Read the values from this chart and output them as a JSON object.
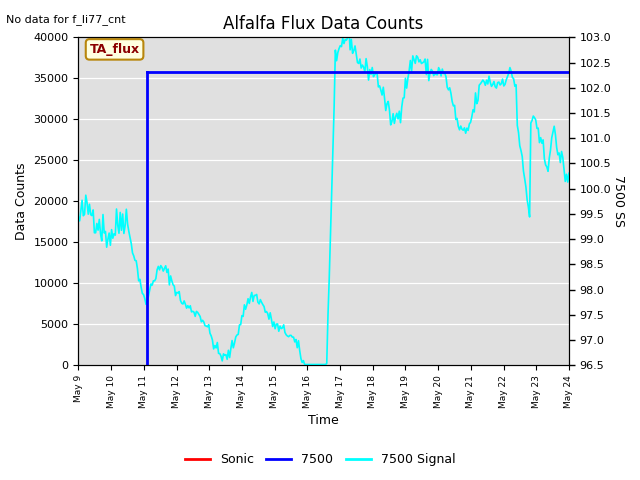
{
  "title": "Alfalfa Flux Data Counts",
  "top_left_text": "No data for f_li77_cnt",
  "xlabel": "Time",
  "ylabel_left": "Data Counts",
  "ylabel_right": "7500 SS",
  "annotation_box": "TA_flux",
  "ylim_left": [
    0,
    40000
  ],
  "ylim_right": [
    96.5,
    103.0
  ],
  "yticks_left": [
    0,
    5000,
    10000,
    15000,
    20000,
    25000,
    30000,
    35000,
    40000
  ],
  "yticks_right": [
    96.5,
    97.0,
    97.5,
    98.0,
    98.5,
    99.0,
    99.5,
    100.0,
    100.5,
    101.0,
    101.5,
    102.0,
    102.5,
    103.0
  ],
  "xtick_labels": [
    "May 9",
    "May 10",
    "May 11",
    "May 12",
    "May 13",
    "May 14",
    "May 15",
    "May 16",
    "May 17",
    "May 18",
    "May 19",
    "May 20",
    "May 21",
    "May 22",
    "May 23",
    "May 24"
  ],
  "bg_color": "#e0e0e0",
  "line_7500_value": 35800,
  "line_7500_color": "blue",
  "cyan_color": "cyan",
  "cyan_lw": 1.2,
  "blue_lw": 2.0,
  "n_points": 400,
  "figsize": [
    6.4,
    4.8
  ],
  "dpi": 100
}
